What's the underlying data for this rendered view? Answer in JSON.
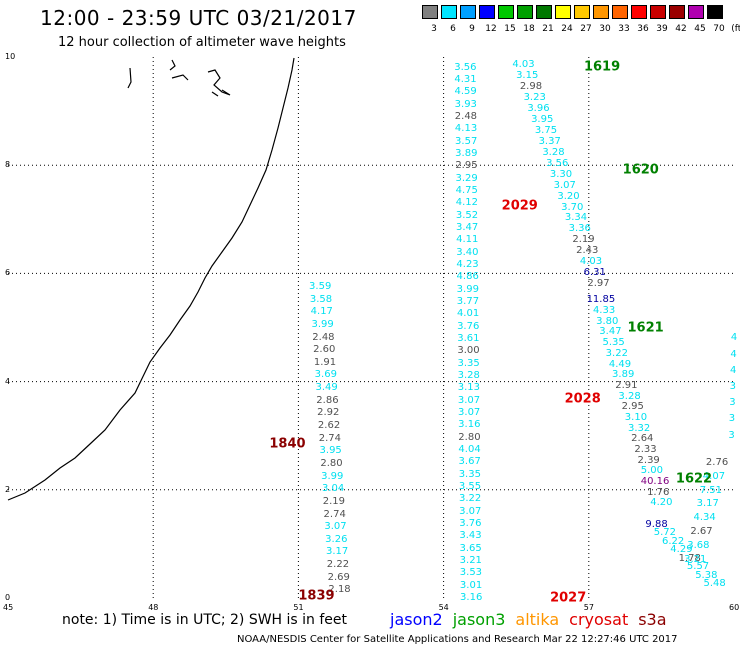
{
  "title": "12:00 - 23:59 UTC 03/21/2017",
  "subtitle": "12 hour collection of altimeter wave heights",
  "legend": {
    "labels": [
      "3",
      "6",
      "9",
      "12",
      "15",
      "18",
      "21",
      "24",
      "27",
      "30",
      "33",
      "36",
      "39",
      "42",
      "45",
      "70",
      "(ft)"
    ],
    "colors": [
      "#808080",
      "#00e5ff",
      "#00a0ff",
      "#0000ff",
      "#00c800",
      "#00a000",
      "#007800",
      "#ffff00",
      "#ffc800",
      "#ff9600",
      "#ff6400",
      "#ff0000",
      "#c80000",
      "#9b0000",
      "#b000b0",
      "#000000"
    ]
  },
  "axes": {
    "x_ticks": [
      "45",
      "48",
      "51",
      "54",
      "57",
      "60"
    ],
    "y_ticks": [
      "0",
      "2",
      "4",
      "6",
      "8",
      "10"
    ],
    "xlim": [
      45,
      60
    ],
    "ylim": [
      0,
      10
    ]
  },
  "colors": {
    "gray": "#505050",
    "cyan": "#00e0f0",
    "navy": "#0000a0",
    "purple": "#800080",
    "green": "#008000",
    "red": "#e00000",
    "darkred": "#8b0000"
  },
  "passes": [
    {
      "label": "1619",
      "color": "green",
      "x": 56.9,
      "y": 9.82
    },
    {
      "label": "1620",
      "color": "green",
      "x": 57.7,
      "y": 7.92
    },
    {
      "label": "2029",
      "color": "red",
      "x": 55.2,
      "y": 7.25
    },
    {
      "label": "1621",
      "color": "green",
      "x": 57.8,
      "y": 5.0
    },
    {
      "label": "2028",
      "color": "red",
      "x": 56.5,
      "y": 3.67
    },
    {
      "label": "1840",
      "color": "darkred",
      "x": 50.4,
      "y": 2.85
    },
    {
      "label": "1622",
      "color": "green",
      "x": 58.8,
      "y": 2.2
    },
    {
      "label": "1839",
      "color": "darkred",
      "x": 51.0,
      "y": 0.04
    },
    {
      "label": "2027",
      "color": "red",
      "x": 56.2,
      "y": 0.0
    }
  ],
  "tracks": [
    {
      "x0": 54.45,
      "y0": 9.8,
      "x1": 54.57,
      "y1": 5.3,
      "color": "cyan",
      "values": [
        "3.56",
        "4.31",
        "4.59",
        "3.93",
        "2.48",
        "4.13",
        "3.57",
        "3.89",
        "2.95",
        "3.29",
        "4.75",
        "4.12",
        "3.52",
        "3.47",
        "4.11",
        "3.40",
        "4.23",
        "4.86",
        "3.99",
        "3.77",
        "4.01",
        "3.76",
        "3.61",
        "3.00",
        "3.35",
        "3.28",
        "3.13",
        "3.07",
        "3.07",
        "3.16",
        "2.80",
        "4.04",
        "3.67",
        "3.35",
        "3.55",
        "3.22",
        "3.07",
        "3.76",
        "3.43",
        "3.65",
        "3.21",
        "3.53",
        "3.01",
        "3.16"
      ],
      "y_end": 0.0,
      "gray": [
        "2.48",
        "2.95",
        "3.00",
        "2.80"
      ]
    },
    {
      "x0": 55.65,
      "y0": 9.85,
      "x1": 57.2,
      "y1": 5.8,
      "color": "cyan",
      "values": [
        "4.03",
        "3.15",
        "2.98",
        "3.23",
        "3.96",
        "3.95",
        "3.75",
        "3.37",
        "3.28",
        "3.56",
        "3.30",
        "3.07",
        "3.20",
        "3.70",
        "3.34",
        "3.36",
        "2.19",
        "2.43",
        "4.03",
        "6.31",
        "2.97"
      ],
      "y_end": 5.8,
      "gray": [
        "2.98",
        "2.19",
        "2.43",
        "2.97"
      ],
      "navy": [
        "6.31"
      ]
    },
    {
      "x0": 57.25,
      "y0": 5.5,
      "x1": 58.5,
      "y1": 2.1,
      "color": "cyan",
      "values": [
        "11.85",
        "4.33",
        "3.80",
        "3.47",
        "5.35",
        "3.22",
        "4.49",
        "3.89",
        "2.91",
        "3.28",
        "2.95",
        "3.10",
        "3.32",
        "2.64",
        "2.33",
        "2.39",
        "5.00",
        "40.16",
        "1.76",
        "4.20"
      ],
      "y_end": 1.75,
      "gray": [
        "2.91",
        "2.95",
        "2.64",
        "2.33",
        "2.39",
        "1.76"
      ],
      "navy": [
        "11.85"
      ],
      "purple": [
        "40.16"
      ]
    },
    {
      "x0": 58.4,
      "y0": 1.35,
      "x1": 59.6,
      "y1": 0.25,
      "color": "cyan",
      "values": [
        "9.88",
        "5.72",
        "6.22",
        "4.29",
        "1.78",
        "5.57",
        "5.38",
        "5.48"
      ],
      "gray": [
        "1.78"
      ],
      "navy": [
        "9.88"
      ]
    },
    {
      "x0": 59.65,
      "y0": 2.5,
      "x1": 59.2,
      "y1": 0.7,
      "color": "cyan",
      "values": [
        "2.76",
        "4.07",
        "7.51",
        "3.17",
        "4.34",
        "2.67",
        "3.68",
        "3.21"
      ],
      "gray": [
        "2.76",
        "2.67"
      ]
    },
    {
      "x0": 60.0,
      "y0": 4.8,
      "x1": 59.95,
      "y1": 3.0,
      "color": "cyan",
      "values": [
        "4",
        "4",
        "4",
        "3",
        "3",
        "3",
        "3"
      ],
      "gray": []
    },
    {
      "x0": 51.45,
      "y0": 5.75,
      "x1": 51.85,
      "y1": 0.14,
      "color": "cyan",
      "values": [
        "3.59",
        "3.58",
        "4.17",
        "3.99",
        "2.48",
        "2.60",
        "1.91",
        "3.69",
        "3.49",
        "2.86",
        "2.92",
        "2.62",
        "2.74",
        "3.95",
        "2.80",
        "3.99",
        "3.04",
        "2.19",
        "2.74",
        "3.07",
        "3.26",
        "3.17",
        "2.22",
        "2.69",
        "2.18"
      ],
      "gray": [
        "2.48",
        "2.60",
        "1.91",
        "2.86",
        "2.92",
        "2.62",
        "2.74",
        "2.80",
        "2.19",
        "2.22",
        "2.69",
        "2.18"
      ]
    }
  ],
  "note": "note: 1) Time is in UTC; 2) SWH is in feet",
  "satellites": [
    {
      "name": "jason2",
      "color": "#0000ff"
    },
    {
      "name": "jason3",
      "color": "#00a000"
    },
    {
      "name": "altika",
      "color": "#ff9600"
    },
    {
      "name": "cryosat",
      "color": "#e00000"
    },
    {
      "name": "s3a",
      "color": "#8b0000"
    }
  ],
  "footer": "NOAA/NESDIS Center for Satellite Applications and Research    Mar 22 12:27:46 UTC 2017"
}
